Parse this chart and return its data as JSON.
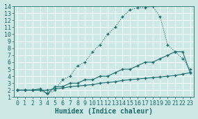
{
  "title": "",
  "xlabel": "Humidex (Indice chaleur)",
  "xlim": [
    -0.5,
    23.5
  ],
  "ylim": [
    1,
    14
  ],
  "xticks": [
    0,
    1,
    2,
    3,
    4,
    5,
    6,
    7,
    8,
    9,
    10,
    11,
    12,
    13,
    14,
    15,
    16,
    17,
    18,
    19,
    20,
    21,
    22,
    23
  ],
  "yticks": [
    1,
    2,
    3,
    4,
    5,
    6,
    7,
    8,
    9,
    10,
    11,
    12,
    13,
    14
  ],
  "bg_color": "#cde8e5",
  "line_color": "#1a6b6b",
  "grid_color": "#b8d8d5",
  "line1_x": [
    0,
    1,
    2,
    3,
    4,
    5,
    6,
    7,
    8,
    9,
    10,
    11,
    12,
    13,
    14,
    15,
    16,
    17,
    18,
    19,
    20,
    21,
    22,
    23
  ],
  "line1_y": [
    2,
    2,
    2,
    2,
    1.5,
    2,
    3.5,
    4,
    5.5,
    6,
    7.5,
    8.5,
    10,
    11,
    12.5,
    13.5,
    13.8,
    13.8,
    14,
    12.5,
    8.5,
    7.5,
    6.5,
    5
  ],
  "line2_x": [
    0,
    1,
    2,
    3,
    4,
    5,
    6,
    7,
    8,
    9,
    10,
    11,
    12,
    13,
    14,
    15,
    16,
    17,
    18,
    19,
    20,
    21,
    22,
    23
  ],
  "line2_y": [
    2,
    2,
    2,
    2.2,
    1.5,
    2.5,
    2.5,
    3.0,
    3.0,
    3.5,
    3.5,
    4.0,
    4.0,
    4.5,
    5.0,
    5.0,
    5.5,
    6.0,
    6.0,
    6.5,
    7.0,
    7.5,
    7.5,
    4.5
  ],
  "line3_x": [
    0,
    1,
    2,
    3,
    4,
    5,
    6,
    7,
    8,
    9,
    10,
    11,
    12,
    13,
    14,
    15,
    16,
    17,
    18,
    19,
    20,
    21,
    22,
    23
  ],
  "line3_y": [
    2,
    2,
    2,
    2,
    2,
    2.2,
    2.3,
    2.5,
    2.6,
    2.7,
    2.8,
    3.0,
    3.1,
    3.2,
    3.4,
    3.5,
    3.6,
    3.7,
    3.8,
    3.9,
    4.0,
    4.1,
    4.3,
    4.5
  ],
  "fontsize_label": 7,
  "fontsize_tick": 6
}
